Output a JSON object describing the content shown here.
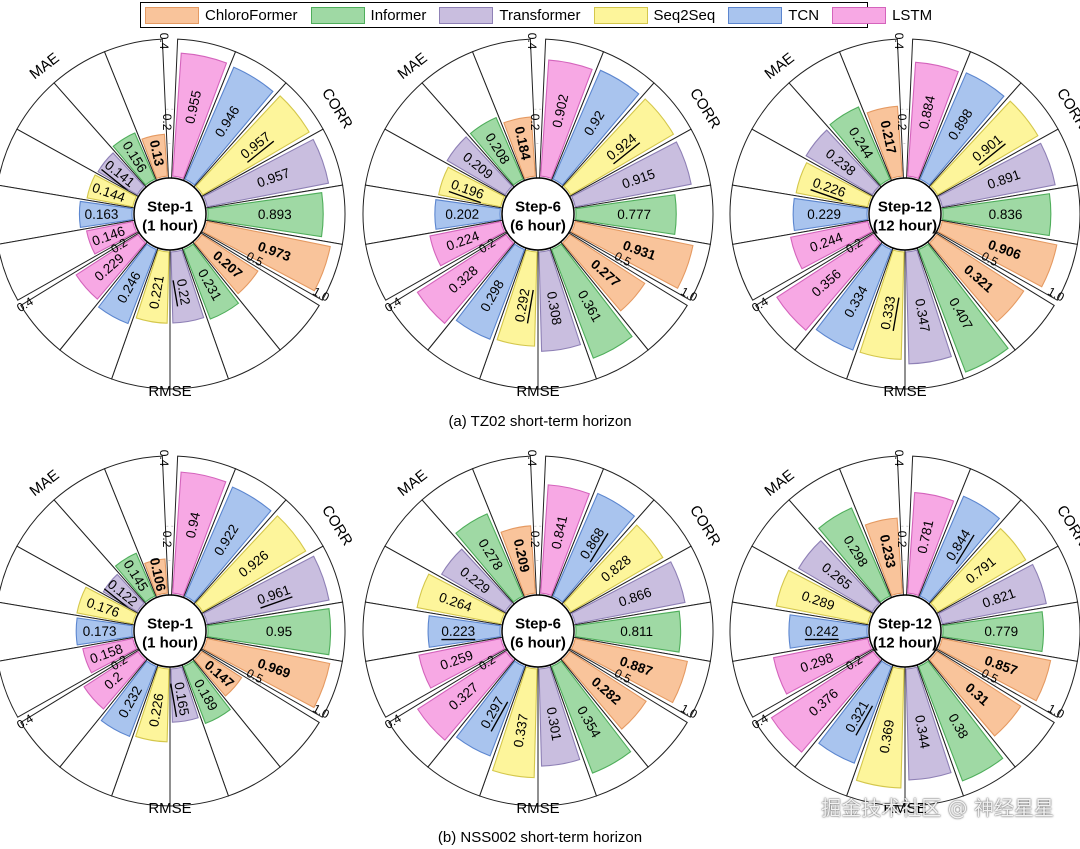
{
  "legend": [
    {
      "name": "ChloroFormer",
      "color": "#f9c49b",
      "border": "#e59a62"
    },
    {
      "name": "Informer",
      "color": "#9fd9a4",
      "border": "#4fae5b"
    },
    {
      "name": "Transformer",
      "color": "#c9bedf",
      "border": "#8f81b6"
    },
    {
      "name": "Seq2Seq",
      "color": "#fdf59b",
      "border": "#d4c74c"
    },
    {
      "name": "TCN",
      "color": "#a9c4ee",
      "border": "#5c86cf"
    },
    {
      "name": "LSTM",
      "color": "#f7a8e4",
      "border": "#d464bc"
    }
  ],
  "captions": {
    "row1": "(a) TZ02 short-term horizon",
    "row2": "(b) NSS002 short-term horizon"
  },
  "axes": {
    "mae_label": "MAE",
    "corr_label": "CORR",
    "rmse_label": "RMSE",
    "mae_ticks": [
      "0.4",
      "0.2"
    ],
    "corr_ticks": [
      "0.5",
      "1.0"
    ],
    "rmse_ticks": [
      "0.2",
      "0.4"
    ]
  },
  "watermark": "掘金技术社区 @ 神经星星",
  "chart_data": [
    {
      "type": "radial-bar",
      "row": 1,
      "col": 1,
      "center_line1": "Step-1",
      "center_line2": "(1 hour)",
      "models": [
        "ChloroFormer",
        "Informer",
        "Transformer",
        "Seq2Seq",
        "TCN",
        "LSTM"
      ],
      "MAE": [
        0.13,
        0.156,
        0.141,
        0.144,
        0.163,
        0.146
      ],
      "CORR": [
        0.973,
        0.893,
        0.957,
        0.957,
        0.946,
        0.955
      ],
      "RMSE": [
        0.207,
        0.231,
        0.22,
        0.221,
        0.246,
        0.229
      ],
      "MAE_ylim": [
        0,
        0.4
      ],
      "CORR_ylim": [
        0,
        1.0
      ],
      "RMSE_ylim": [
        0,
        0.4
      ],
      "bold": {
        "MAE": 0,
        "CORR": 0,
        "RMSE": 0
      },
      "underline": {
        "MAE": 2,
        "CORR": 3,
        "RMSE": 2
      }
    },
    {
      "type": "radial-bar",
      "row": 1,
      "col": 2,
      "center_line1": "Step-6",
      "center_line2": "(6 hour)",
      "models": [
        "ChloroFormer",
        "Informer",
        "Transformer",
        "Seq2Seq",
        "TCN",
        "LSTM"
      ],
      "MAE": [
        0.184,
        0.208,
        0.209,
        0.196,
        0.202,
        0.224
      ],
      "CORR": [
        0.931,
        0.777,
        0.915,
        0.924,
        0.92,
        0.902
      ],
      "RMSE": [
        0.277,
        0.361,
        0.308,
        0.292,
        0.298,
        0.328
      ],
      "MAE_ylim": [
        0,
        0.4
      ],
      "CORR_ylim": [
        0,
        1.0
      ],
      "RMSE_ylim": [
        0,
        0.4
      ],
      "bold": {
        "MAE": 0,
        "CORR": 0,
        "RMSE": 0
      },
      "underline": {
        "MAE": 3,
        "CORR": 3,
        "RMSE": 3
      }
    },
    {
      "type": "radial-bar",
      "row": 1,
      "col": 3,
      "center_line1": "Step-12",
      "center_line2": "(12 hour)",
      "models": [
        "ChloroFormer",
        "Informer",
        "Transformer",
        "Seq2Seq",
        "TCN",
        "LSTM"
      ],
      "MAE": [
        0.217,
        0.244,
        0.238,
        0.226,
        0.229,
        0.244
      ],
      "CORR": [
        0.906,
        0.836,
        0.891,
        0.901,
        0.898,
        0.884
      ],
      "RMSE": [
        0.321,
        0.407,
        0.347,
        0.333,
        0.334,
        0.356
      ],
      "MAE_ylim": [
        0,
        0.4
      ],
      "CORR_ylim": [
        0,
        1.0
      ],
      "RMSE_ylim": [
        0,
        0.4
      ],
      "bold": {
        "MAE": 0,
        "CORR": 0,
        "RMSE": 0
      },
      "underline": {
        "MAE": 3,
        "CORR": 3,
        "RMSE": 3
      }
    },
    {
      "type": "radial-bar",
      "row": 2,
      "col": 1,
      "center_line1": "Step-1",
      "center_line2": "(1 hour)",
      "models": [
        "ChloroFormer",
        "Informer",
        "Transformer",
        "Seq2Seq",
        "TCN",
        "LSTM"
      ],
      "MAE": [
        0.106,
        0.145,
        0.122,
        0.176,
        0.173,
        0.158
      ],
      "CORR": [
        0.969,
        0.95,
        0.961,
        0.926,
        0.922,
        0.94
      ],
      "RMSE": [
        0.147,
        0.189,
        0.165,
        0.226,
        0.232,
        0.2
      ],
      "MAE_ylim": [
        0,
        0.4
      ],
      "CORR_ylim": [
        0,
        1.0
      ],
      "RMSE_ylim": [
        0,
        0.4
      ],
      "bold": {
        "MAE": 0,
        "CORR": 0,
        "RMSE": 0
      },
      "underline": {
        "MAE": 2,
        "CORR": 2,
        "RMSE": 2
      }
    },
    {
      "type": "radial-bar",
      "row": 2,
      "col": 2,
      "center_line1": "Step-6",
      "center_line2": "(6 hour)",
      "models": [
        "ChloroFormer",
        "Informer",
        "Transformer",
        "Seq2Seq",
        "TCN",
        "LSTM"
      ],
      "MAE": [
        0.209,
        0.278,
        0.229,
        0.264,
        0.223,
        0.259
      ],
      "CORR": [
        0.887,
        0.811,
        0.866,
        0.828,
        0.868,
        0.841
      ],
      "RMSE": [
        0.282,
        0.354,
        0.301,
        0.337,
        0.297,
        0.327
      ],
      "MAE_ylim": [
        0,
        0.4
      ],
      "CORR_ylim": [
        0,
        1.0
      ],
      "RMSE_ylim": [
        0,
        0.4
      ],
      "bold": {
        "MAE": 0,
        "CORR": 0,
        "RMSE": 0
      },
      "underline": {
        "MAE": 4,
        "CORR": 4,
        "RMSE": 4
      }
    },
    {
      "type": "radial-bar",
      "row": 2,
      "col": 3,
      "center_line1": "Step-12",
      "center_line2": "(12 hour)",
      "models": [
        "ChloroFormer",
        "Informer",
        "Transformer",
        "Seq2Seq",
        "TCN",
        "LSTM"
      ],
      "MAE": [
        0.233,
        0.298,
        0.265,
        0.289,
        0.242,
        0.298
      ],
      "CORR": [
        0.857,
        0.779,
        0.821,
        0.791,
        0.844,
        0.781
      ],
      "RMSE": [
        0.31,
        0.38,
        0.344,
        0.369,
        0.321,
        0.376
      ],
      "MAE_ylim": [
        0,
        0.4
      ],
      "CORR_ylim": [
        0,
        1.0
      ],
      "RMSE_ylim": [
        0,
        0.4
      ],
      "bold": {
        "MAE": 0,
        "CORR": 0,
        "RMSE": 0
      },
      "underline": {
        "MAE": 4,
        "CORR": 4,
        "RMSE": 4
      }
    }
  ]
}
